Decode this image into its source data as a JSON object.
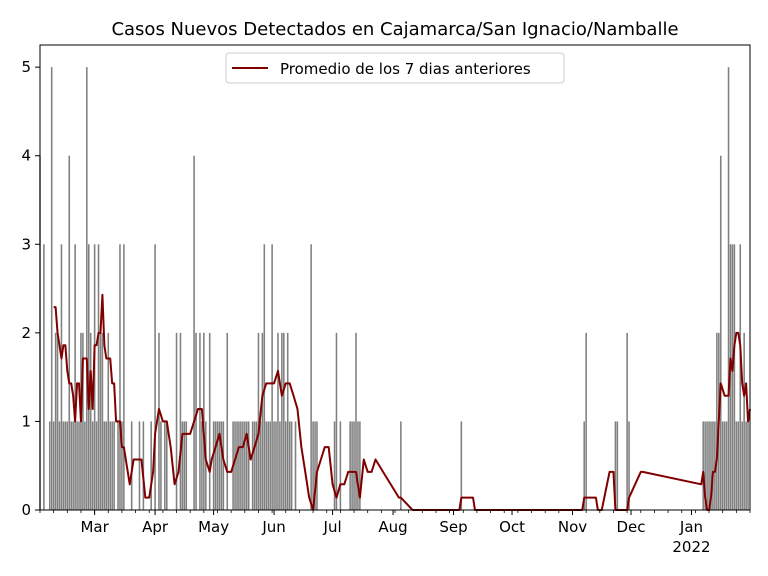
{
  "chart_data": {
    "type": "bar",
    "title": "Casos Nuevos Detectados en Cajamarca/San Ignacio/Namballe",
    "xlabel": "",
    "ylabel": "",
    "ylim": [
      0,
      5.25
    ],
    "x_range": [
      "2021-02-01",
      "2022-01-31"
    ],
    "yticks": [
      0,
      1,
      2,
      3,
      4,
      5
    ],
    "xticks": [
      {
        "date": "2021-03-01",
        "label": "Mar"
      },
      {
        "date": "2021-04-01",
        "label": "Apr"
      },
      {
        "date": "2021-05-01",
        "label": "May"
      },
      {
        "date": "2021-06-01",
        "label": "Jun"
      },
      {
        "date": "2021-07-01",
        "label": "Jul"
      },
      {
        "date": "2021-08-01",
        "label": "Aug"
      },
      {
        "date": "2021-09-01",
        "label": "Sep"
      },
      {
        "date": "2021-10-01",
        "label": "Oct"
      },
      {
        "date": "2021-11-01",
        "label": "Nov"
      },
      {
        "date": "2021-12-01",
        "label": "Dec"
      },
      {
        "date": "2022-01-01",
        "label": "Jan",
        "sublabel": "2022"
      }
    ],
    "bar_color": "#808080",
    "legend": {
      "position": "top-center"
    },
    "series": [
      {
        "type": "bar",
        "x": [
          "2021-02-01",
          "2021-02-03",
          "2021-02-06",
          "2021-02-07",
          "2021-02-08",
          "2021-02-09",
          "2021-02-10",
          "2021-02-11",
          "2021-02-12",
          "2021-02-13",
          "2021-02-14",
          "2021-02-15",
          "2021-02-16",
          "2021-02-17",
          "2021-02-18",
          "2021-02-19",
          "2021-02-20",
          "2021-02-21",
          "2021-02-22",
          "2021-02-23",
          "2021-02-24",
          "2021-02-25",
          "2021-02-26",
          "2021-02-27",
          "2021-02-28",
          "2021-03-01",
          "2021-03-02",
          "2021-03-03",
          "2021-03-04",
          "2021-03-05",
          "2021-03-06",
          "2021-03-07",
          "2021-03-08",
          "2021-03-09",
          "2021-03-10",
          "2021-03-11",
          "2021-03-13",
          "2021-03-14",
          "2021-03-15",
          "2021-03-16",
          "2021-03-20",
          "2021-03-24",
          "2021-03-26",
          "2021-03-30",
          "2021-04-01",
          "2021-04-03",
          "2021-04-04",
          "2021-04-06",
          "2021-04-07",
          "2021-04-12",
          "2021-04-14",
          "2021-04-15",
          "2021-04-16",
          "2021-04-17",
          "2021-04-21",
          "2021-04-22",
          "2021-04-24",
          "2021-04-25",
          "2021-04-26",
          "2021-04-27",
          "2021-04-29",
          "2021-05-01",
          "2021-05-02",
          "2021-05-03",
          "2021-05-04",
          "2021-05-05",
          "2021-05-06",
          "2021-05-08",
          "2021-05-11",
          "2021-05-12",
          "2021-05-13",
          "2021-05-14",
          "2021-05-15",
          "2021-05-16",
          "2021-05-17",
          "2021-05-18",
          "2021-05-19",
          "2021-05-21",
          "2021-05-22",
          "2021-05-23",
          "2021-05-24",
          "2021-05-25",
          "2021-05-26",
          "2021-05-27",
          "2021-05-28",
          "2021-05-29",
          "2021-05-30",
          "2021-05-31",
          "2021-06-01",
          "2021-06-02",
          "2021-06-03",
          "2021-06-04",
          "2021-06-05",
          "2021-06-06",
          "2021-06-07",
          "2021-06-08",
          "2021-06-09",
          "2021-06-10",
          "2021-06-12",
          "2021-06-20",
          "2021-06-21",
          "2021-06-22",
          "2021-06-23",
          "2021-07-02",
          "2021-07-03",
          "2021-07-05",
          "2021-07-10",
          "2021-07-11",
          "2021-07-12",
          "2021-07-13",
          "2021-07-14",
          "2021-07-15",
          "2021-08-05",
          "2021-09-05",
          "2021-11-07",
          "2021-11-08",
          "2021-11-23",
          "2021-11-24",
          "2021-11-29",
          "2021-11-30",
          "2022-01-07",
          "2022-01-08",
          "2022-01-09",
          "2022-01-10",
          "2022-01-11",
          "2022-01-12",
          "2022-01-13",
          "2022-01-14",
          "2022-01-15",
          "2022-01-16",
          "2022-01-17",
          "2022-01-18",
          "2022-01-19",
          "2022-01-20",
          "2022-01-21",
          "2022-01-22",
          "2022-01-23",
          "2022-01-24",
          "2022-01-25",
          "2022-01-26",
          "2022-01-27",
          "2022-01-28",
          "2022-01-29",
          "2022-01-30"
        ],
        "values": [
          4,
          3,
          1,
          5,
          1,
          2,
          2,
          1,
          3,
          1,
          1,
          1,
          4,
          1,
          1,
          3,
          1,
          1,
          2,
          2,
          1,
          5,
          3,
          2,
          1,
          3,
          1,
          3,
          2,
          2,
          1,
          1,
          2,
          1,
          1,
          1,
          1,
          3,
          1,
          3,
          1,
          1,
          1,
          1,
          3,
          2,
          1,
          1,
          1,
          2,
          2,
          1,
          1,
          1,
          4,
          2,
          2,
          1,
          2,
          1,
          2,
          1,
          1,
          1,
          1,
          1,
          1,
          2,
          1,
          1,
          1,
          1,
          1,
          1,
          1,
          1,
          1,
          1,
          1,
          1,
          2,
          1,
          2,
          3,
          1,
          1,
          1,
          3,
          1,
          1,
          2,
          1,
          2,
          2,
          1,
          2,
          1,
          1,
          1,
          3,
          1,
          1,
          1,
          1,
          2,
          1,
          1,
          1,
          1,
          2,
          1,
          1,
          1,
          1,
          1,
          2,
          1,
          1,
          2,
          1,
          1,
          1,
          1,
          1,
          1,
          1,
          1,
          2,
          2,
          4,
          1,
          1,
          1,
          5,
          3,
          3,
          3,
          1,
          1,
          3,
          1,
          2,
          1,
          1
        ]
      },
      {
        "type": "line",
        "name": "Promedio de los 7 dias anteriores",
        "color": "#800000",
        "x": [
          "2021-02-08",
          "2021-02-09",
          "2021-02-10",
          "2021-02-11",
          "2021-02-12",
          "2021-02-13",
          "2021-02-14",
          "2021-02-15",
          "2021-02-16",
          "2021-02-17",
          "2021-02-18",
          "2021-02-19",
          "2021-02-20",
          "2021-02-21",
          "2021-02-22",
          "2021-02-23",
          "2021-02-24",
          "2021-02-25",
          "2021-02-26",
          "2021-02-27",
          "2021-02-28",
          "2021-03-01",
          "2021-03-02",
          "2021-03-03",
          "2021-03-04",
          "2021-03-05",
          "2021-03-06",
          "2021-03-07",
          "2021-03-08",
          "2021-03-09",
          "2021-03-10",
          "2021-03-11",
          "2021-03-12",
          "2021-03-13",
          "2021-03-14",
          "2021-03-15",
          "2021-03-16",
          "2021-03-17",
          "2021-03-19",
          "2021-03-21",
          "2021-03-23",
          "2021-03-25",
          "2021-03-27",
          "2021-03-29",
          "2021-03-31",
          "2021-04-01",
          "2021-04-03",
          "2021-04-05",
          "2021-04-06",
          "2021-04-07",
          "2021-04-09",
          "2021-04-11",
          "2021-04-13",
          "2021-04-15",
          "2021-04-16",
          "2021-04-17",
          "2021-04-19",
          "2021-04-21",
          "2021-04-23",
          "2021-04-25",
          "2021-04-27",
          "2021-04-29",
          "2021-04-30",
          "2021-05-02",
          "2021-05-04",
          "2021-05-06",
          "2021-05-08",
          "2021-05-10",
          "2021-05-12",
          "2021-05-14",
          "2021-05-16",
          "2021-05-18",
          "2021-05-20",
          "2021-05-22",
          "2021-05-24",
          "2021-05-26",
          "2021-05-28",
          "2021-05-30",
          "2021-06-01",
          "2021-06-03",
          "2021-06-05",
          "2021-06-07",
          "2021-06-09",
          "2021-06-11",
          "2021-06-13",
          "2021-06-15",
          "2021-06-17",
          "2021-06-19",
          "2021-06-21",
          "2021-06-23",
          "2021-06-25",
          "2021-06-27",
          "2021-06-29",
          "2021-07-01",
          "2021-07-03",
          "2021-07-05",
          "2021-07-07",
          "2021-07-09",
          "2021-07-11",
          "2021-07-13",
          "2021-07-15",
          "2021-07-17",
          "2021-07-19",
          "2021-07-21",
          "2021-07-23",
          "2021-08-04",
          "2021-08-05",
          "2021-08-11",
          "2021-08-12",
          "2021-09-04",
          "2021-09-05",
          "2021-09-11",
          "2021-09-12",
          "2021-11-06",
          "2021-11-07",
          "2021-11-13",
          "2021-11-14",
          "2021-11-16",
          "2021-11-20",
          "2021-11-22",
          "2021-11-23",
          "2021-11-28",
          "2021-11-29",
          "2021-11-30",
          "2021-12-06",
          "2021-12-07",
          "2022-01-06",
          "2022-01-07",
          "2022-01-08",
          "2022-01-09",
          "2022-01-10",
          "2022-01-11",
          "2022-01-12",
          "2022-01-13",
          "2022-01-14",
          "2022-01-16",
          "2022-01-18",
          "2022-01-19",
          "2022-01-20",
          "2022-01-21",
          "2022-01-22",
          "2022-01-23",
          "2022-01-24",
          "2022-01-25",
          "2022-01-26",
          "2022-01-27",
          "2022-01-28",
          "2022-01-29",
          "2022-01-30",
          "2022-01-31"
        ],
        "values": [
          2.29,
          2.29,
          2.0,
          1.86,
          1.71,
          1.86,
          1.86,
          1.57,
          1.43,
          1.43,
          1.29,
          1.0,
          1.43,
          1.43,
          1.0,
          1.71,
          1.71,
          1.71,
          1.14,
          1.57,
          1.14,
          1.86,
          1.86,
          2.0,
          2.0,
          2.43,
          1.86,
          1.71,
          1.71,
          1.71,
          1.43,
          1.43,
          1.0,
          1.0,
          1.0,
          0.71,
          0.71,
          0.57,
          0.29,
          0.57,
          0.57,
          0.57,
          0.14,
          0.14,
          0.43,
          0.86,
          1.14,
          1.0,
          1.0,
          1.0,
          0.71,
          0.29,
          0.43,
          0.86,
          0.86,
          0.86,
          0.86,
          1.0,
          1.14,
          1.14,
          0.57,
          0.43,
          0.57,
          0.71,
          0.86,
          0.57,
          0.43,
          0.43,
          0.57,
          0.71,
          0.71,
          0.86,
          0.57,
          0.71,
          0.86,
          1.29,
          1.43,
          1.43,
          1.43,
          1.57,
          1.29,
          1.43,
          1.43,
          1.29,
          1.14,
          0.71,
          0.43,
          0.14,
          0.0,
          0.43,
          0.57,
          0.71,
          0.71,
          0.29,
          0.14,
          0.29,
          0.29,
          0.43,
          0.43,
          0.43,
          0.14,
          0.57,
          0.43,
          0.43,
          0.57,
          0.14,
          0.14,
          0.0,
          0.0,
          0.0,
          0.14,
          0.14,
          0.0,
          0.0,
          0.14,
          0.14,
          0.0,
          0.0,
          0.43,
          0.43,
          0.0,
          0.0,
          0.0,
          0.14,
          0.43,
          0.43,
          0.29,
          0.43,
          0.14,
          0.0,
          0.0,
          0.14,
          0.43,
          0.43,
          0.57,
          1.43,
          1.29,
          1.29,
          1.29,
          1.71,
          1.57,
          1.86,
          2.0,
          2.0,
          1.86,
          1.43,
          1.29,
          1.43,
          1.0,
          1.14
        ]
      }
    ]
  }
}
